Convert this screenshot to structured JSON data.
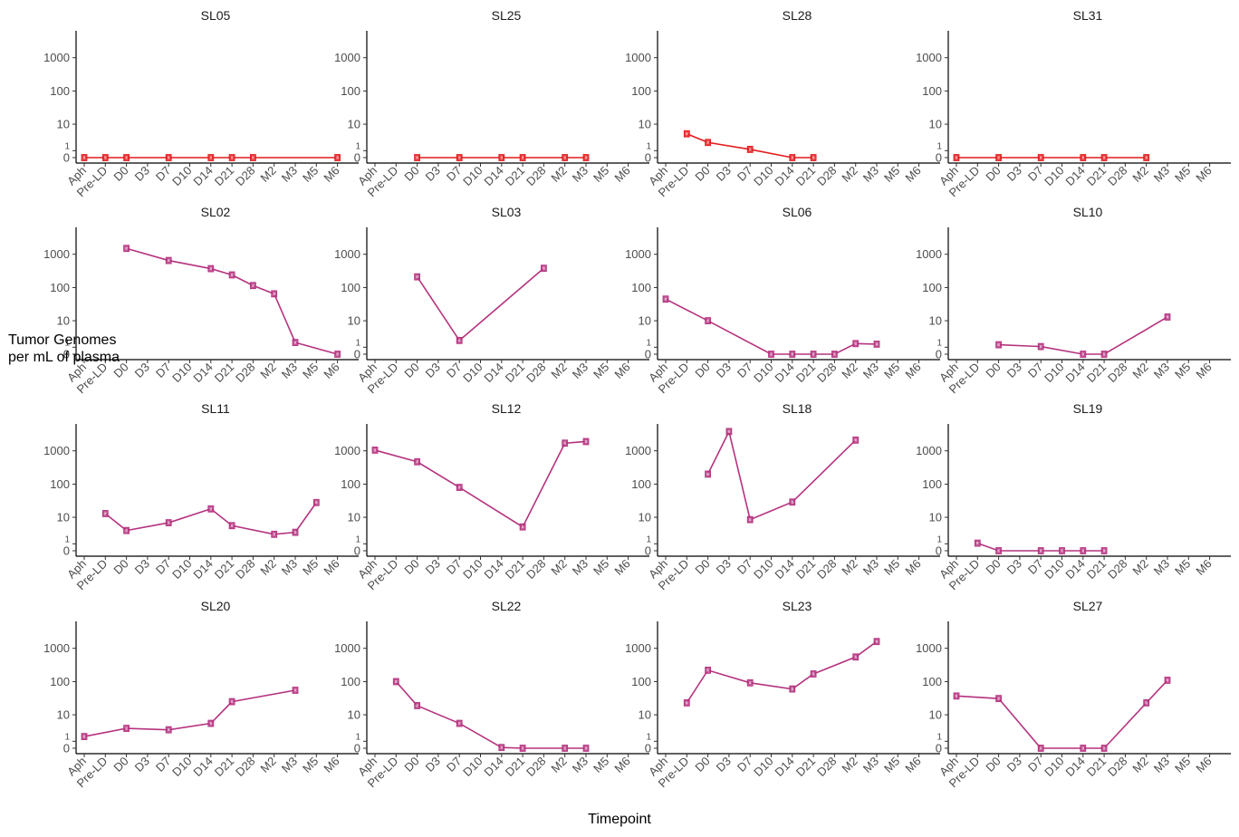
{
  "chart_data": {
    "type": "line",
    "xlabel": "Timepoint",
    "ylabel_lines": [
      "Tumor Genomes",
      "per mL of plasma"
    ],
    "x_categories": [
      "Aph",
      "Pre-LD",
      "D0",
      "D3",
      "D7",
      "D10",
      "D14",
      "D21",
      "D28",
      "M2",
      "M3",
      "M5",
      "M6"
    ],
    "y_scale": "pseudo-log",
    "y_ticks": [
      0,
      1,
      10,
      100,
      1000
    ],
    "y_tick_labels": [
      "0",
      "1",
      "10",
      "100",
      "1000"
    ],
    "y_max": 5000,
    "series_colors": {
      "red": "#e41a1c",
      "magenta": "#b5337f"
    },
    "facets": [
      {
        "title": "SL05",
        "color": "red",
        "points": [
          {
            "x": "Aph",
            "y": 0
          },
          {
            "x": "Pre-LD",
            "y": 0
          },
          {
            "x": "D0",
            "y": 0
          },
          {
            "x": "D7",
            "y": 0
          },
          {
            "x": "D14",
            "y": 0
          },
          {
            "x": "D21",
            "y": 0
          },
          {
            "x": "D28",
            "y": 0
          },
          {
            "x": "M6",
            "y": 0
          }
        ]
      },
      {
        "title": "SL25",
        "color": "red",
        "points": [
          {
            "x": "D0",
            "y": 0
          },
          {
            "x": "D7",
            "y": 0
          },
          {
            "x": "D14",
            "y": 0
          },
          {
            "x": "D21",
            "y": 0
          },
          {
            "x": "M2",
            "y": 0
          },
          {
            "x": "M3",
            "y": 0
          }
        ]
      },
      {
        "title": "SL28",
        "color": "red",
        "points": [
          {
            "x": "Pre-LD",
            "y": 5
          },
          {
            "x": "D0",
            "y": 2.5
          },
          {
            "x": "D7",
            "y": 1.2
          },
          {
            "x": "D14",
            "y": 0
          },
          {
            "x": "D21",
            "y": 0
          }
        ]
      },
      {
        "title": "SL31",
        "color": "red",
        "points": [
          {
            "x": "Aph",
            "y": 0
          },
          {
            "x": "D0",
            "y": 0
          },
          {
            "x": "D7",
            "y": 0
          },
          {
            "x": "D14",
            "y": 0
          },
          {
            "x": "D21",
            "y": 0
          },
          {
            "x": "M2",
            "y": 0
          }
        ]
      },
      {
        "title": "SL02",
        "color": "magenta",
        "points": [
          {
            "x": "D0",
            "y": 1500
          },
          {
            "x": "D7",
            "y": 650
          },
          {
            "x": "D14",
            "y": 370
          },
          {
            "x": "D21",
            "y": 240
          },
          {
            "x": "D28",
            "y": 115
          },
          {
            "x": "M2",
            "y": 65
          },
          {
            "x": "M3",
            "y": 1.8
          },
          {
            "x": "M6",
            "y": 0
          }
        ]
      },
      {
        "title": "SL03",
        "color": "magenta",
        "points": [
          {
            "x": "D0",
            "y": 210
          },
          {
            "x": "D7",
            "y": 2.2
          },
          {
            "x": "D28",
            "y": 380
          }
        ]
      },
      {
        "title": "SL06",
        "color": "magenta",
        "points": [
          {
            "x": "Aph",
            "y": 45
          },
          {
            "x": "D0",
            "y": 10
          },
          {
            "x": "D10",
            "y": 0
          },
          {
            "x": "D14",
            "y": 0
          },
          {
            "x": "D21",
            "y": 0
          },
          {
            "x": "D28",
            "y": 0
          },
          {
            "x": "M2",
            "y": 1.6
          },
          {
            "x": "M3",
            "y": 1.5
          }
        ]
      },
      {
        "title": "SL10",
        "color": "magenta",
        "points": [
          {
            "x": "D0",
            "y": 1.4
          },
          {
            "x": "D7",
            "y": 1.1
          },
          {
            "x": "D14",
            "y": 0
          },
          {
            "x": "D21",
            "y": 0
          },
          {
            "x": "M3",
            "y": 13
          }
        ]
      },
      {
        "title": "SL11",
        "color": "magenta",
        "points": [
          {
            "x": "Pre-LD",
            "y": 13
          },
          {
            "x": "D0",
            "y": 3.8
          },
          {
            "x": "D7",
            "y": 6.8
          },
          {
            "x": "D14",
            "y": 18
          },
          {
            "x": "D21",
            "y": 5.5
          },
          {
            "x": "M2",
            "y": 2.8
          },
          {
            "x": "M3",
            "y": 3.3
          },
          {
            "x": "M5",
            "y": 28
          }
        ]
      },
      {
        "title": "SL12",
        "color": "magenta",
        "points": [
          {
            "x": "Aph",
            "y": 1050
          },
          {
            "x": "D0",
            "y": 470
          },
          {
            "x": "D7",
            "y": 80
          },
          {
            "x": "D21",
            "y": 5
          },
          {
            "x": "M2",
            "y": 1700
          },
          {
            "x": "M3",
            "y": 1900
          }
        ]
      },
      {
        "title": "SL18",
        "color": "magenta",
        "points": [
          {
            "x": "D0",
            "y": 200
          },
          {
            "x": "D3",
            "y": 3800
          },
          {
            "x": "D7",
            "y": 8.5
          },
          {
            "x": "D14",
            "y": 29
          },
          {
            "x": "M2",
            "y": 2100
          }
        ]
      },
      {
        "title": "SL19",
        "color": "magenta",
        "points": [
          {
            "x": "Pre-LD",
            "y": 1.1
          },
          {
            "x": "D0",
            "y": 0
          },
          {
            "x": "D7",
            "y": 0
          },
          {
            "x": "D10",
            "y": 0
          },
          {
            "x": "D14",
            "y": 0
          },
          {
            "x": "D21",
            "y": 0
          }
        ]
      },
      {
        "title": "SL20",
        "color": "magenta",
        "points": [
          {
            "x": "Aph",
            "y": 1.8
          },
          {
            "x": "D0",
            "y": 3.7
          },
          {
            "x": "D7",
            "y": 3.3
          },
          {
            "x": "D14",
            "y": 5.4
          },
          {
            "x": "D21",
            "y": 25
          },
          {
            "x": "M3",
            "y": 55
          }
        ]
      },
      {
        "title": "SL22",
        "color": "magenta",
        "points": [
          {
            "x": "Pre-LD",
            "y": 100
          },
          {
            "x": "D0",
            "y": 19
          },
          {
            "x": "D7",
            "y": 5.4
          },
          {
            "x": "D14",
            "y": 0.1
          },
          {
            "x": "D21",
            "y": 0
          },
          {
            "x": "M2",
            "y": 0
          },
          {
            "x": "M3",
            "y": 0
          }
        ]
      },
      {
        "title": "SL23",
        "color": "magenta",
        "points": [
          {
            "x": "Pre-LD",
            "y": 23
          },
          {
            "x": "D0",
            "y": 220
          },
          {
            "x": "D7",
            "y": 92
          },
          {
            "x": "D14",
            "y": 60
          },
          {
            "x": "D21",
            "y": 170
          },
          {
            "x": "M2",
            "y": 550
          },
          {
            "x": "M3",
            "y": 1600
          }
        ]
      },
      {
        "title": "SL27",
        "color": "magenta",
        "points": [
          {
            "x": "Aph",
            "y": 37
          },
          {
            "x": "D0",
            "y": 31
          },
          {
            "x": "D7",
            "y": 0
          },
          {
            "x": "D14",
            "y": 0
          },
          {
            "x": "D21",
            "y": 0
          },
          {
            "x": "M2",
            "y": 23
          },
          {
            "x": "M3",
            "y": 110
          }
        ]
      }
    ]
  }
}
